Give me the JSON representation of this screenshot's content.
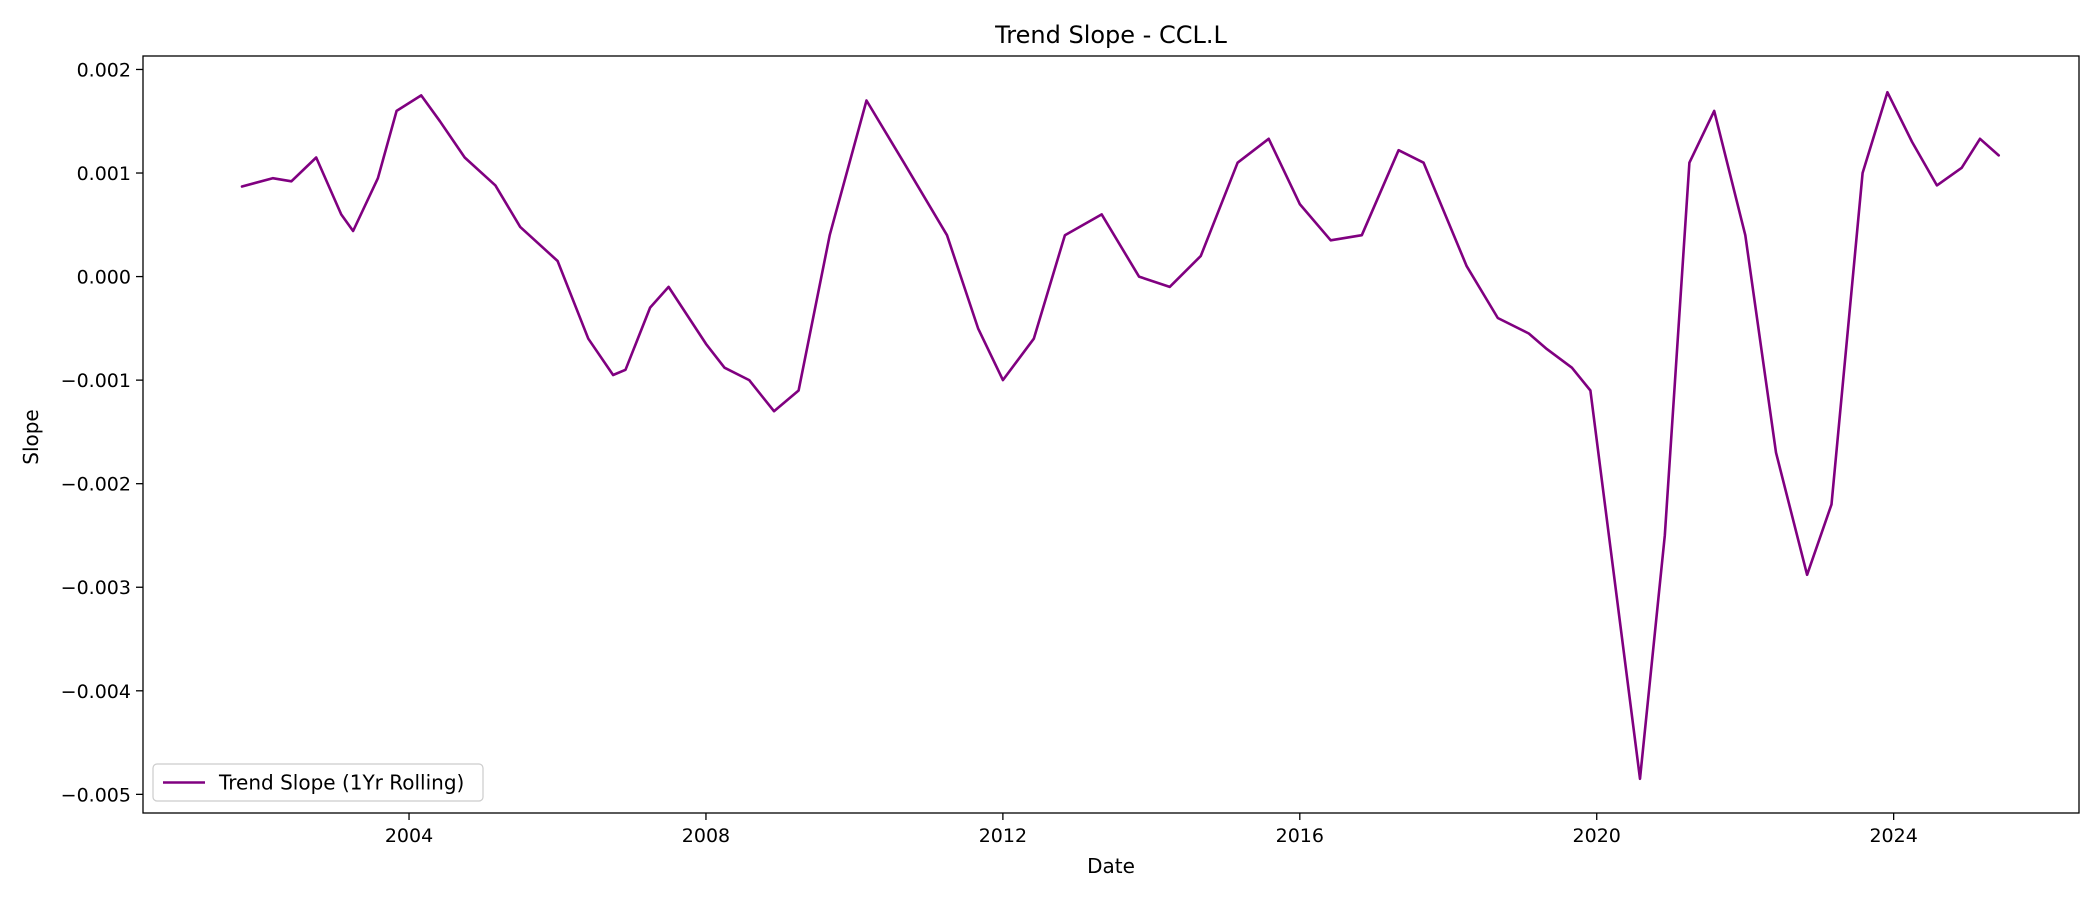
{
  "chart_data": {
    "type": "line",
    "title": "Trend Slope - CCL.L",
    "xlabel": "Date",
    "ylabel": "Slope",
    "xlim": [
      "2000-06-01",
      "2026-07-01"
    ],
    "ylim": [
      -0.00518,
      0.00213
    ],
    "x_ticks": [
      {
        "value": "2004-01-01",
        "label": "2004"
      },
      {
        "value": "2008-01-01",
        "label": "2008"
      },
      {
        "value": "2012-01-01",
        "label": "2012"
      },
      {
        "value": "2016-01-01",
        "label": "2016"
      },
      {
        "value": "2020-01-01",
        "label": "2020"
      },
      {
        "value": "2024-01-01",
        "label": "2024"
      }
    ],
    "y_ticks": [
      {
        "value": 0.002,
        "label": "0.002"
      },
      {
        "value": 0.001,
        "label": "0.001"
      },
      {
        "value": 0.0,
        "label": "0.000"
      },
      {
        "value": -0.001,
        "label": "−0.001"
      },
      {
        "value": -0.002,
        "label": "−0.002"
      },
      {
        "value": -0.003,
        "label": "−0.003"
      },
      {
        "value": -0.004,
        "label": "−0.004"
      },
      {
        "value": -0.005,
        "label": "−0.005"
      }
    ],
    "grid": false,
    "legend_position": "lower-left",
    "series": [
      {
        "name": "Trend Slope (1Yr Rolling)",
        "color": "#800080",
        "x": [
          "2001-10-01",
          "2002-03-01",
          "2002-06-01",
          "2002-10-01",
          "2003-02-01",
          "2003-04-01",
          "2003-08-01",
          "2003-11-01",
          "2004-03-01",
          "2004-06-01",
          "2004-10-01",
          "2005-03-01",
          "2005-07-01",
          "2006-01-01",
          "2006-06-01",
          "2006-10-01",
          "2006-12-01",
          "2007-04-01",
          "2007-07-01",
          "2008-01-01",
          "2008-04-01",
          "2008-08-01",
          "2008-12-01",
          "2009-04-01",
          "2009-09-01",
          "2010-03-01",
          "2010-09-01",
          "2011-04-01",
          "2011-09-01",
          "2012-01-01",
          "2012-06-01",
          "2012-11-01",
          "2013-05-01",
          "2013-11-01",
          "2014-04-01",
          "2014-09-01",
          "2015-03-01",
          "2015-08-01",
          "2016-01-01",
          "2016-06-01",
          "2016-11-01",
          "2017-05-01",
          "2017-09-01",
          "2018-04-01",
          "2018-09-01",
          "2019-02-01",
          "2019-05-01",
          "2019-09-01",
          "2019-12-01",
          "2020-03-01",
          "2020-08-01",
          "2020-12-01",
          "2021-04-01",
          "2021-08-01",
          "2022-01-01",
          "2022-06-01",
          "2022-11-01",
          "2023-03-01",
          "2023-08-01",
          "2023-12-01",
          "2024-04-01",
          "2024-08-01",
          "2024-12-01",
          "2025-03-01",
          "2025-06-01"
        ],
        "values": [
          0.00087,
          0.00095,
          0.00092,
          0.00115,
          0.0006,
          0.00044,
          0.00095,
          0.0016,
          0.00175,
          0.0015,
          0.00115,
          0.00088,
          0.00048,
          0.00015,
          -0.0006,
          -0.00095,
          -0.0009,
          -0.0003,
          -0.0001,
          -0.00065,
          -0.00088,
          -0.001,
          -0.0013,
          -0.0011,
          0.0004,
          0.0017,
          0.0011,
          0.0004,
          -0.0005,
          -0.001,
          -0.0006,
          0.0004,
          0.0006,
          0.0,
          -0.0001,
          0.0002,
          0.0011,
          0.00133,
          0.0007,
          0.00035,
          0.0004,
          0.00122,
          0.0011,
          0.0001,
          -0.0004,
          -0.00055,
          -0.0007,
          -0.00088,
          -0.0011,
          -0.0025,
          -0.00485,
          -0.0025,
          0.0011,
          0.0016,
          0.0004,
          -0.0017,
          -0.00288,
          -0.0022,
          0.001,
          0.00178,
          0.0013,
          0.00088,
          0.00105,
          0.00133,
          0.00117
        ]
      }
    ]
  }
}
